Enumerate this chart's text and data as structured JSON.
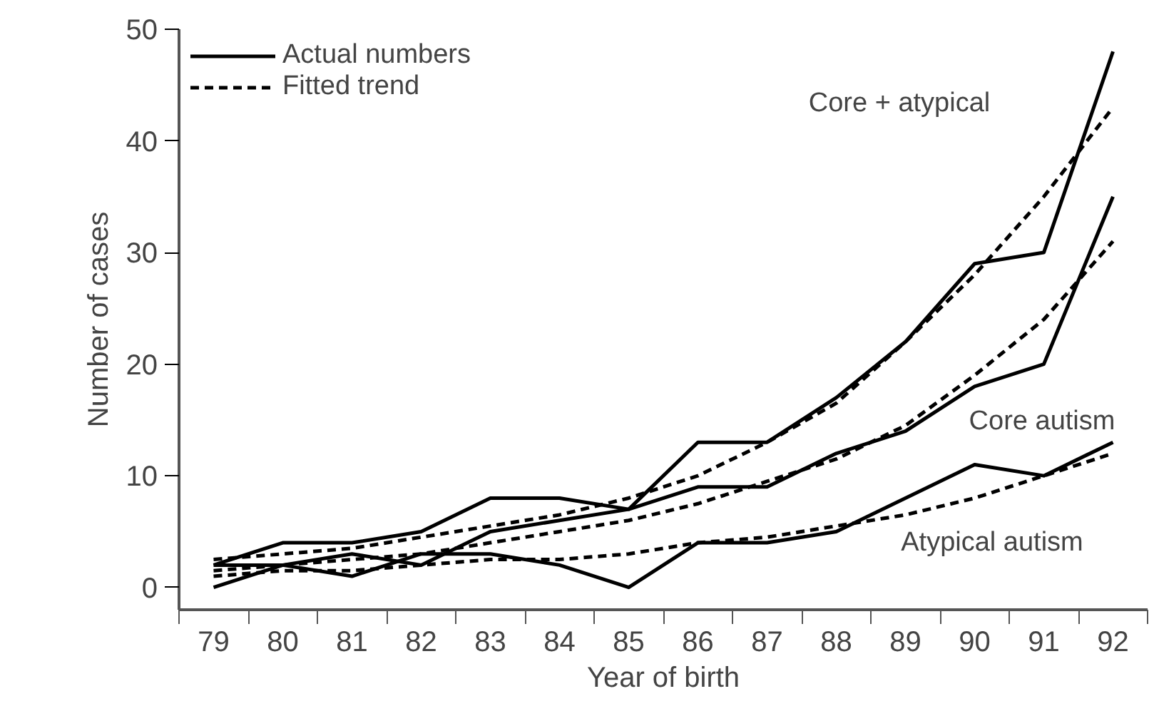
{
  "chart_data": {
    "type": "line",
    "xlabel": "Year of birth",
    "ylabel": "Number of cases",
    "x": [
      79,
      80,
      81,
      82,
      83,
      84,
      85,
      86,
      87,
      88,
      89,
      90,
      91,
      92
    ],
    "xlim": [
      78.5,
      92.5
    ],
    "xticks": [
      79,
      80,
      81,
      82,
      83,
      84,
      85,
      86,
      87,
      88,
      89,
      90,
      91,
      92,
      {
        "value": 78.5,
        "label": null
      },
      {
        "value": 79.5,
        "label": null
      },
      {
        "value": 80.5,
        "label": null
      },
      {
        "value": 81.5,
        "label": null
      },
      {
        "value": 82.5,
        "label": null
      },
      {
        "value": 83.5,
        "label": null
      },
      {
        "value": 84.5,
        "label": null
      },
      {
        "value": 85.5,
        "label": null
      },
      {
        "value": 86.5,
        "label": null
      },
      {
        "value": 87.5,
        "label": null
      },
      {
        "value": 88.5,
        "label": null
      },
      {
        "value": 89.5,
        "label": null
      },
      {
        "value": 90.5,
        "label": null
      },
      {
        "value": 91.5,
        "label": null
      },
      {
        "value": 92.5,
        "label": null
      }
    ],
    "ylim": [
      -2,
      50
    ],
    "yticks": [
      0,
      10,
      20,
      30,
      40,
      50
    ],
    "grid": false,
    "legend": "top left",
    "marker": "none",
    "series": [
      {
        "name": "Actual numbers",
        "color": "#000000",
        "line_style": "solid",
        "values": [
          2,
          4,
          4,
          5,
          8,
          8,
          7,
          13,
          13,
          17,
          22,
          29,
          30,
          48
        ]
      },
      {
        "color": "#000000",
        "line_style": "solid",
        "values": [
          2,
          2,
          3,
          2,
          5,
          6,
          7,
          9,
          9,
          12,
          14,
          18,
          20,
          35
        ]
      },
      {
        "color": "#000000",
        "line_style": "solid",
        "values": [
          0,
          2,
          1,
          3,
          3,
          2,
          0,
          4,
          4,
          5,
          8,
          11,
          10,
          13
        ]
      },
      {
        "name": "Fitted trend",
        "color": "#000000",
        "line_style": "dashed",
        "values": [
          2.5,
          3,
          3.5,
          4.5,
          5.5,
          6.5,
          8,
          10,
          13,
          16.5,
          22,
          28,
          35,
          43
        ]
      },
      {
        "color": "#000000",
        "line_style": "dashed",
        "values": [
          1.5,
          2,
          2.5,
          3,
          4,
          5,
          6,
          7.5,
          9.5,
          11.5,
          14.5,
          19,
          24,
          31
        ]
      },
      {
        "color": "#000000",
        "line_style": "dashed",
        "values": [
          1,
          1.5,
          1.5,
          2,
          2.5,
          2.5,
          3,
          4,
          4.5,
          5.5,
          6.5,
          8,
          10,
          12
        ]
      }
    ],
    "annotations": [
      "Core + atypical",
      "Core autism",
      "Atypical autism"
    ]
  }
}
